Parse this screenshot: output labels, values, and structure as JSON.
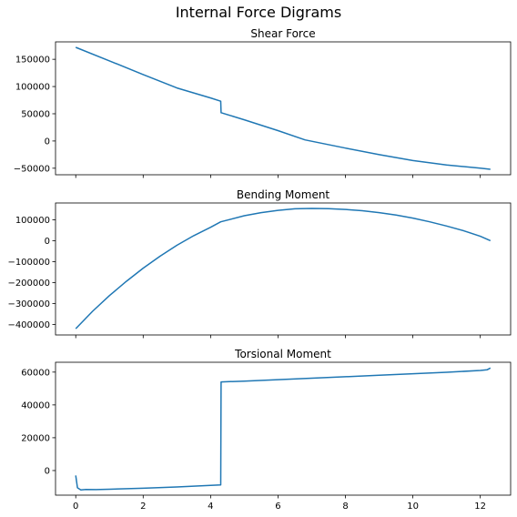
{
  "figure_title": "Internal Force Digrams",
  "chart_data": [
    {
      "type": "line",
      "title": "Shear Force",
      "xlabel": "",
      "ylabel": "",
      "xlim": [
        -0.6,
        12.9
      ],
      "ylim": [
        -62000,
        182000
      ],
      "xticks": [
        0,
        2,
        4,
        6,
        8,
        10,
        12
      ],
      "xtick_labels_visible": false,
      "yticks": [
        -50000,
        0,
        50000,
        100000,
        150000
      ],
      "ytick_labels": [
        "−50000",
        "0",
        "50000",
        "100000",
        "150000"
      ],
      "grid": false,
      "series": [
        {
          "color": "#1f77b4",
          "x": [
            0,
            1,
            2,
            3,
            4,
            4.3,
            4.31,
            5,
            6,
            6.8,
            8,
            9,
            10,
            11,
            12,
            12.3
          ],
          "y": [
            172000,
            147000,
            122000,
            97500,
            79000,
            73000,
            52000,
            39000,
            19000,
            2000,
            -13000,
            -25000,
            -36000,
            -44000,
            -50000,
            -52000
          ]
        }
      ]
    },
    {
      "type": "line",
      "title": "Bending Moment",
      "xlabel": "",
      "ylabel": "",
      "xlim": [
        -0.6,
        12.9
      ],
      "ylim": [
        -450000,
        180000
      ],
      "xticks": [
        0,
        2,
        4,
        6,
        8,
        10,
        12
      ],
      "xtick_labels_visible": false,
      "yticks": [
        -400000,
        -300000,
        -200000,
        -100000,
        0,
        100000
      ],
      "ytick_labels": [
        "−400000",
        "−300000",
        "−200000",
        "−100000",
        "0",
        "100000"
      ],
      "grid": false,
      "series": [
        {
          "color": "#1f77b4",
          "x": [
            0,
            0.5,
            1,
            1.5,
            2,
            2.5,
            3,
            3.5,
            4,
            4.3,
            5,
            5.5,
            6,
            6.5,
            7,
            7.5,
            8,
            8.5,
            9,
            9.5,
            10,
            10.5,
            11,
            11.5,
            12,
            12.3
          ],
          "y": [
            -420000,
            -337000,
            -262000,
            -194000,
            -131000,
            -74000,
            -22000,
            24000,
            64000,
            90000,
            119000,
            134000,
            145000,
            152000,
            154000,
            153000,
            149000,
            143000,
            134000,
            122000,
            108000,
            90000,
            70000,
            48000,
            21000,
            0
          ]
        }
      ]
    },
    {
      "type": "line",
      "title": "Torsional Moment",
      "xlabel": "",
      "ylabel": "",
      "xlim": [
        -0.6,
        12.9
      ],
      "ylim": [
        -15000,
        66000
      ],
      "xticks": [
        0,
        2,
        4,
        6,
        8,
        10,
        12
      ],
      "xtick_labels": [
        "0",
        "2",
        "4",
        "6",
        "8",
        "10",
        "12"
      ],
      "yticks": [
        0,
        20000,
        40000,
        60000
      ],
      "ytick_labels": [
        "0",
        "20000",
        "40000",
        "60000"
      ],
      "grid": false,
      "series": [
        {
          "color": "#1f77b4",
          "x": [
            0,
            0.05,
            0.15,
            0.3,
            0.6,
            1,
            2,
            3,
            4,
            4.3,
            4.31,
            5,
            6,
            7,
            8,
            9,
            10,
            11,
            12,
            12.2,
            12.3
          ],
          "y": [
            -3000,
            -10500,
            -11800,
            -11500,
            -11600,
            -11400,
            -10800,
            -10000,
            -9000,
            -8800,
            54000,
            54500,
            55400,
            56300,
            57200,
            58100,
            59000,
            59900,
            61000,
            61400,
            62500
          ]
        }
      ]
    }
  ]
}
